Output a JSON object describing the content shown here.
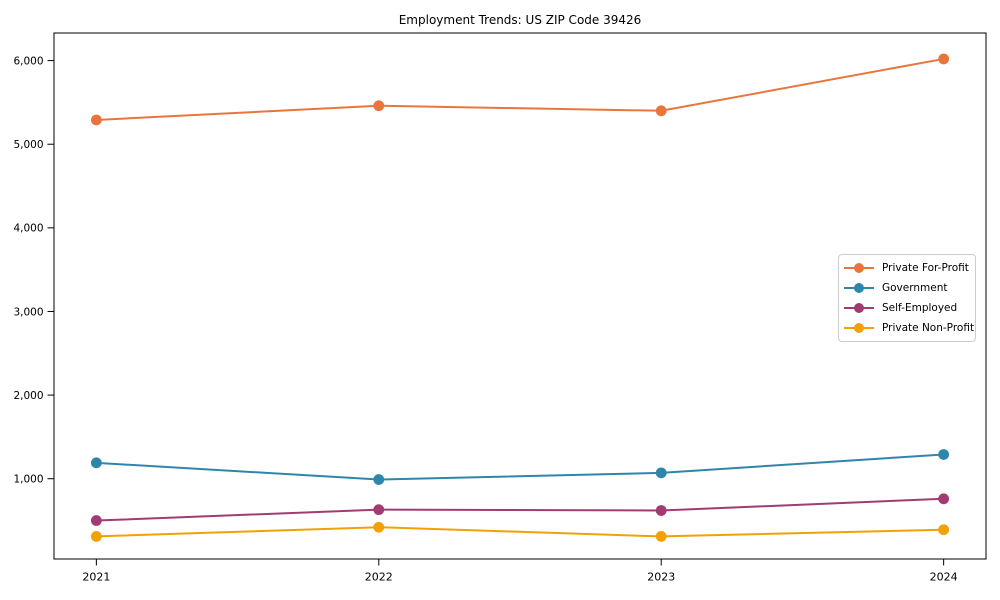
{
  "figure": {
    "title": "Employment Trends: US ZIP Code 39426"
  },
  "axes": {
    "x_tick_labels": [
      "2021",
      "2022",
      "2023",
      "2024"
    ],
    "y_tick_labels": [
      "1,000",
      "2,000",
      "3,000",
      "4,000",
      "5,000",
      "6,000"
    ]
  },
  "chart_data": {
    "type": "line",
    "title": "Employment Trends: US ZIP Code 39426",
    "x": [
      2021,
      2022,
      2023,
      2024
    ],
    "xlabel": "",
    "ylabel": "",
    "xlim": [
      2020.85,
      2024.15
    ],
    "ylim": [
      40,
      6330
    ],
    "y_tick_values": [
      1000,
      2000,
      3000,
      4000,
      5000,
      6000
    ],
    "grid": false,
    "legend_position": "center-right",
    "marker": "circle",
    "series": [
      {
        "name": "Private For-Profit",
        "color": "#E8763C",
        "values": [
          5290,
          5460,
          5400,
          6020
        ]
      },
      {
        "name": "Government",
        "color": "#2E86AB",
        "values": [
          1190,
          990,
          1070,
          1290
        ]
      },
      {
        "name": "Self-Employed",
        "color": "#A23B72",
        "values": [
          500,
          630,
          620,
          760
        ]
      },
      {
        "name": "Private Non-Profit",
        "color": "#F2A104",
        "values": [
          310,
          420,
          310,
          390
        ]
      }
    ]
  }
}
